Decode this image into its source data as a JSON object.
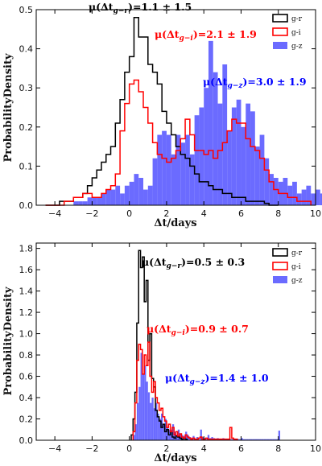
{
  "chart_data": [
    {
      "type": "histogram",
      "xlabel": "Δt/days",
      "ylabel": "ProbabilityDensity",
      "xlim": [
        -5,
        10
      ],
      "ylim": [
        0,
        0.5
      ],
      "xticks": [
        -4,
        -2,
        0,
        2,
        4,
        6,
        8,
        10
      ],
      "xtick_labels": [
        "−4",
        "−2",
        "0",
        "2",
        "4",
        "6",
        "8",
        "10"
      ],
      "yticks": [
        0,
        0.1,
        0.2,
        0.3,
        0.4,
        0.5
      ],
      "ytick_labels": [
        "0.0",
        "0.1",
        "0.2",
        "0.3",
        "0.4",
        "0.5"
      ],
      "bin_width": 0.25,
      "legend": {
        "placement": "top-right",
        "labels": [
          "g-r",
          "g-i",
          "g-z"
        ]
      },
      "annotations": [
        "μ(Δtg−r)=1.1 ± 1.5",
        "μ(Δtg−i)=2.1 ± 1.9",
        "μ(Δtg−z)=3.0 ± 1.9"
      ],
      "series": [
        {
          "name": "g-r",
          "style": "step",
          "color": "#000000",
          "x_start": -4.5,
          "values": [
            0,
            0,
            0,
            0.01,
            0.01,
            0.01,
            0.02,
            0.02,
            0.03,
            0.05,
            0.07,
            0.09,
            0.11,
            0.13,
            0.15,
            0.21,
            0.27,
            0.34,
            0.38,
            0.48,
            0.43,
            0.43,
            0.36,
            0.34,
            0.31,
            0.24,
            0.21,
            0.18,
            0.15,
            0.13,
            0.12,
            0.1,
            0.08,
            0.06,
            0.06,
            0.05,
            0.04,
            0.04,
            0.03,
            0.03,
            0.02,
            0.02,
            0.02,
            0.01,
            0.01,
            0.01,
            0.01,
            0.005,
            0,
            0
          ]
        },
        {
          "name": "g-i",
          "style": "step",
          "color": "#ff0000",
          "x_start": -4.5,
          "values": [
            0,
            0,
            0,
            0,
            0.01,
            0.01,
            0.02,
            0.02,
            0.03,
            0.03,
            0.02,
            0.02,
            0.03,
            0.04,
            0.05,
            0.08,
            0.19,
            0.26,
            0.31,
            0.32,
            0.29,
            0.25,
            0.21,
            0.16,
            0.13,
            0.12,
            0.11,
            0.12,
            0.14,
            0.17,
            0.22,
            0.18,
            0.14,
            0.14,
            0.13,
            0.14,
            0.12,
            0.14,
            0.16,
            0.19,
            0.22,
            0.21,
            0.21,
            0.17,
            0.15,
            0.14,
            0.12,
            0.09,
            0.06,
            0.04,
            0.03,
            0.03,
            0.02,
            0.02,
            0.01,
            0.01,
            0.01
          ]
        },
        {
          "name": "g-z",
          "style": "filled",
          "color": "#0000ff",
          "opacity": 0.55,
          "x_start": -3.0,
          "values": [
            0.01,
            0.01,
            0.01,
            0.02,
            0.02,
            0.02,
            0.03,
            0.04,
            0.04,
            0.05,
            0.03,
            0.05,
            0.06,
            0.08,
            0.07,
            0.04,
            0.05,
            0.12,
            0.18,
            0.19,
            0.18,
            0.13,
            0.18,
            0.16,
            0.18,
            0.13,
            0.23,
            0.25,
            0.3,
            0.42,
            0.34,
            0.26,
            0.36,
            0.19,
            0.25,
            0.27,
            0.2,
            0.26,
            0.24,
            0.15,
            0.18,
            0.12,
            0.08,
            0.07,
            0.06,
            0.07,
            0.05,
            0.06,
            0.03,
            0.04,
            0.05,
            0.03,
            0.04,
            0.03,
            0.02,
            0.01,
            0.02,
            0.01
          ]
        }
      ]
    },
    {
      "type": "histogram",
      "xlabel": "Δt/days",
      "ylabel": "ProbabilityDensity",
      "xlim": [
        -5,
        10
      ],
      "ylim": [
        0,
        1.85
      ],
      "xticks": [
        -4,
        -2,
        0,
        2,
        4,
        6,
        8,
        10
      ],
      "xtick_labels": [
        "−4",
        "−2",
        "0",
        "2",
        "4",
        "6",
        "8",
        "10"
      ],
      "yticks": [
        0,
        0.2,
        0.4,
        0.6,
        0.8,
        1.0,
        1.2,
        1.4,
        1.6,
        1.8
      ],
      "ytick_labels": [
        "0.0",
        "0.2",
        "0.4",
        "0.6",
        "0.8",
        "1.0",
        "1.2",
        "1.4",
        "1.6",
        "1.8"
      ],
      "bin_width": 0.1,
      "legend": {
        "placement": "top-right",
        "labels": [
          "g-r",
          "g-i",
          "g-z"
        ]
      },
      "annotations": [
        "μ(Δtg−r)=0.5 ± 0.3",
        "μ(Δtg−i)=0.9 ± 0.7",
        "μ(Δtg−z)=1.4 ± 1.0"
      ],
      "series": [
        {
          "name": "g-r",
          "style": "step",
          "color": "#000000",
          "x_start": 0.1,
          "values": [
            0.05,
            0.2,
            0.45,
            1.1,
            1.78,
            1.62,
            1.72,
            1.3,
            1.5,
            0.75,
            1.0,
            0.58,
            0.5,
            0.28,
            0.22,
            0.18,
            0.12,
            0.15,
            0.08,
            0.1,
            0.05,
            0.08,
            0.03,
            0.02,
            0.04,
            0.03,
            0.02,
            0.01,
            0.02,
            0.01
          ]
        },
        {
          "name": "g-i",
          "style": "step",
          "color": "#ff0000",
          "x_start": 0.2,
          "values": [
            0.08,
            0.35,
            0.75,
            0.9,
            0.85,
            0.62,
            0.8,
            0.7,
            0.92,
            0.6,
            0.45,
            0.55,
            0.4,
            0.35,
            0.28,
            0.3,
            0.22,
            0.18,
            0.12,
            0.15,
            0.08,
            0.12,
            0.05,
            0.08,
            0.04,
            0.06,
            0.03,
            0.02,
            0.05,
            0.03,
            0.02,
            0.01,
            0.02,
            0.01,
            0.01,
            0.02,
            0.03,
            0.01,
            0.01,
            0.02,
            0.01,
            0.01,
            0.01,
            0.01,
            0.01,
            0.01,
            0.01,
            0.01,
            0.01,
            0.01,
            0.01,
            0.01,
            0.12,
            0.02,
            0.01,
            0.01
          ]
        },
        {
          "name": "g-z",
          "style": "filled",
          "color": "#0000ff",
          "opacity": 0.55,
          "x_start": 0.2,
          "values": [
            0.05,
            0.15,
            0.35,
            0.5,
            0.82,
            0.62,
            0.7,
            0.55,
            0.45,
            0.35,
            0.4,
            0.3,
            0.35,
            0.25,
            0.2,
            0.25,
            0.15,
            0.2,
            0.12,
            0.1,
            0.1,
            0.15,
            0.08,
            0.05,
            0.1,
            0.06,
            0.05,
            0.04,
            0.08,
            0.05,
            0.03,
            0.02,
            0.04,
            0.01,
            0.03,
            0.01,
            0.1,
            0.03,
            0.02,
            0.01,
            0.05,
            0.02,
            0.03,
            0.02,
            0.01,
            0.02,
            0.01,
            0.01,
            0.02,
            0.01,
            0.01,
            0.01,
            0.01,
            0.01,
            0.01,
            0.01,
            0.01,
            0.01,
            0.02,
            0.01,
            0.01,
            0.01,
            0.01,
            0.01,
            0.01,
            0.01,
            0.01,
            0.01,
            0.01,
            0.01,
            0.01,
            0.01,
            0.01,
            0.01,
            0.01,
            0.01,
            0.01,
            0.01,
            0.09
          ]
        }
      ]
    }
  ],
  "figure": {
    "panels": [
      {
        "xlabel": "Δt/days",
        "ylabel": "ProbabilityDensity",
        "legend": [
          "g-r",
          "g-i",
          "g-z"
        ],
        "ann_base": [
          "μ(Δt",
          "μ(Δt",
          "μ(Δt"
        ],
        "ann_sub": [
          "g−r",
          "g−i",
          "g−z"
        ],
        "ann_value": [
          ")=1.1 ± 1.5",
          ")=2.1 ± 1.9",
          ")=3.0 ± 1.9"
        ]
      },
      {
        "xlabel": "Δt/days",
        "ylabel": "ProbabilityDensity",
        "legend": [
          "g-r",
          "g-i",
          "g-z"
        ],
        "ann_base": [
          "μ(Δt",
          "μ(Δt",
          "μ(Δt"
        ],
        "ann_sub": [
          "g−r",
          "g−i",
          "g−z"
        ],
        "ann_value": [
          ")=0.5 ± 0.3",
          ")=0.9 ± 0.7",
          ")=1.4 ± 1.0"
        ]
      }
    ],
    "colors": {
      "g-r": "#000000",
      "g-i": "#ff0000",
      "g-z": "#0000ff",
      "fill_gz": "#6b6bff"
    }
  }
}
